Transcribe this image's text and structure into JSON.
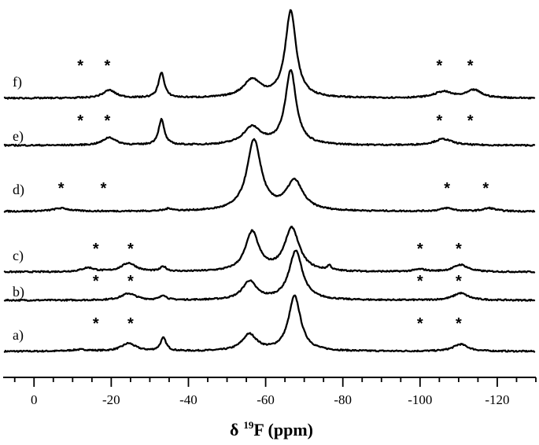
{
  "chart_data": {
    "type": "line",
    "title": "",
    "xlabel": "δ",
    "xlabel_sup": "19",
    "xlabel_rest": "F (ppm)",
    "ylabel": "",
    "xlim": [
      8,
      -130
    ],
    "x_reversed": true,
    "x_ticks": [
      0,
      -20,
      -40,
      -60,
      -80,
      -100,
      -120
    ],
    "x_tick_labels": [
      "0",
      "-20",
      "-40",
      "-60",
      "-80",
      "-100",
      "-120"
    ],
    "grid": false,
    "series": [
      {
        "name": "a)",
        "peaks": [
          {
            "x": -12,
            "h": 0.04,
            "w": 3
          },
          {
            "x": -24.5,
            "h": 0.2,
            "w": 2.2
          },
          {
            "x": -33.5,
            "h": 0.33,
            "w": 0.9
          },
          {
            "x": -55.8,
            "h": 0.42,
            "w": 2.3
          },
          {
            "x": -67.5,
            "h": 1.4,
            "w": 1.9
          },
          {
            "x": -110.5,
            "h": 0.18,
            "w": 2.3
          }
        ],
        "sidebands": [
          -16,
          -25,
          -100,
          -110
        ]
      },
      {
        "name": "b)",
        "peaks": [
          {
            "x": -24.5,
            "h": 0.17,
            "w": 2.3
          },
          {
            "x": -33.5,
            "h": 0.12,
            "w": 0.9
          },
          {
            "x": -55.8,
            "h": 0.47,
            "w": 2.2
          },
          {
            "x": -67.8,
            "h": 1.25,
            "w": 2.1
          },
          {
            "x": -110.5,
            "h": 0.18,
            "w": 2.3
          }
        ],
        "sidebands": [
          -16,
          -25,
          -100,
          -110
        ]
      },
      {
        "name": "c)",
        "peaks": [
          {
            "x": -14,
            "h": 0.1,
            "w": 2
          },
          {
            "x": -24.5,
            "h": 0.22,
            "w": 2.3
          },
          {
            "x": -33.5,
            "h": 0.12,
            "w": 0.9
          },
          {
            "x": -56.5,
            "h": 1.0,
            "w": 2.1
          },
          {
            "x": -66.8,
            "h": 1.1,
            "w": 2.3
          },
          {
            "x": -76.5,
            "h": 0.12,
            "w": 0.6
          },
          {
            "x": -100,
            "h": 0.06,
            "w": 2
          },
          {
            "x": -110.5,
            "h": 0.18,
            "w": 2.3
          }
        ],
        "sidebands": [
          -16,
          -25,
          -100,
          -110
        ]
      },
      {
        "name": "d)",
        "peaks": [
          {
            "x": -7,
            "h": 0.08,
            "w": 2.5
          },
          {
            "x": -35,
            "h": 0.06,
            "w": 1.2
          },
          {
            "x": -57,
            "h": 1.8,
            "w": 2.2
          },
          {
            "x": -67.5,
            "h": 0.75,
            "w": 2.6
          },
          {
            "x": -107,
            "h": 0.08,
            "w": 2
          },
          {
            "x": -118,
            "h": 0.08,
            "w": 2
          }
        ],
        "sidebands": [
          -7,
          -18,
          -107,
          -117
        ]
      },
      {
        "name": "e)",
        "peaks": [
          {
            "x": -19.5,
            "h": 0.2,
            "w": 2
          },
          {
            "x": -33,
            "h": 0.65,
            "w": 0.9
          },
          {
            "x": -56.5,
            "h": 0.45,
            "w": 2.8
          },
          {
            "x": -66.5,
            "h": 1.9,
            "w": 1.7
          },
          {
            "x": -106,
            "h": 0.16,
            "w": 2.8
          }
        ],
        "sidebands": [
          -12,
          -19,
          -105,
          -113
        ]
      },
      {
        "name": "f)",
        "peaks": [
          {
            "x": -19.5,
            "h": 0.2,
            "w": 2
          },
          {
            "x": -33,
            "h": 0.65,
            "w": 0.9
          },
          {
            "x": -56.5,
            "h": 0.45,
            "w": 2.8
          },
          {
            "x": -66.5,
            "h": 2.2,
            "w": 1.7
          },
          {
            "x": -106,
            "h": 0.16,
            "w": 2.8
          },
          {
            "x": -114,
            "h": 0.2,
            "w": 2.3
          }
        ],
        "sidebands": [
          -12,
          -19,
          -105,
          -113
        ]
      }
    ],
    "sideband_marker": "*"
  }
}
